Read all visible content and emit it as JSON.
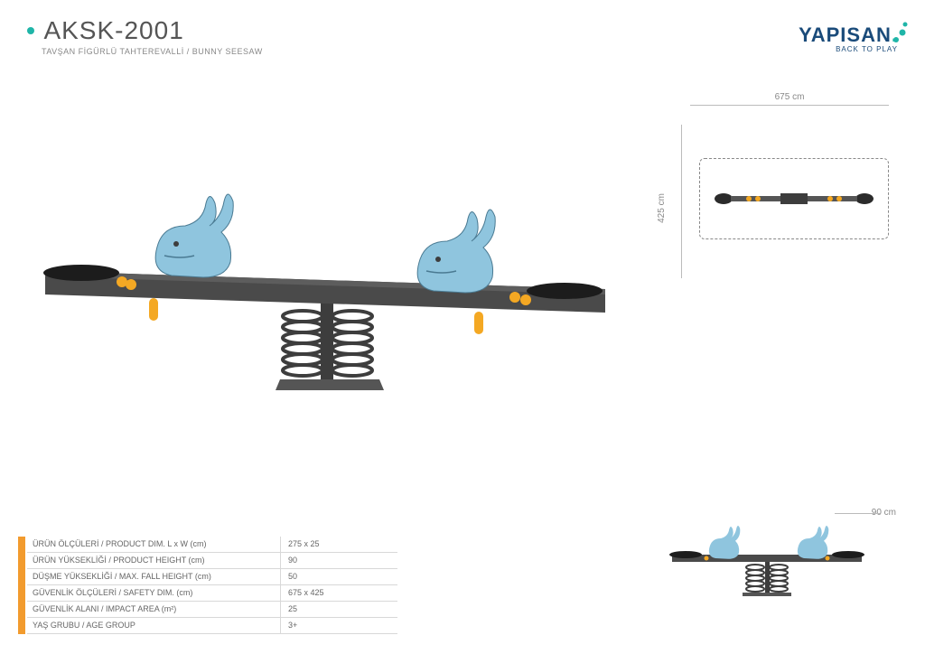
{
  "colors": {
    "accent_teal": "#1fb5a8",
    "bunny_blue": "#8fc5de",
    "accent_yellow": "#f4a823",
    "dark_grey": "#3d3d3d",
    "orange_bar": "#f29b2e",
    "logo_blue": "#1a4b7a"
  },
  "header": {
    "product_code": "AKSK-2001",
    "subtitle": "TAVŞAN FİGÜRLÜ TAHTEREVALLİ / BUNNY SEESAW",
    "logo_name": "YAPISAN",
    "logo_tagline": "BACK TO PLAY"
  },
  "dimensions": {
    "top_width": "675 cm",
    "top_height": "425 cm",
    "side_height": "90 cm"
  },
  "specs": [
    {
      "label": "ÜRÜN ÖLÇÜLERİ / PRODUCT DIM. L x W (cm)",
      "value": "275 x 25"
    },
    {
      "label": "ÜRÜN YÜKSEKLİĞİ / PRODUCT HEIGHT (cm)",
      "value": "90"
    },
    {
      "label": "DÜŞME YÜKSEKLİĞİ / MAX. FALL HEIGHT (cm)",
      "value": "50"
    },
    {
      "label": "GÜVENLİK ÖLÇÜLERİ / SAFETY DIM. (cm)",
      "value": "675 x 425"
    },
    {
      "label": "GÜVENLİK ALANI / IMPACT AREA (m²)",
      "value": "25"
    },
    {
      "label": "YAŞ GRUBU / AGE GROUP",
      "value": "3+"
    }
  ]
}
